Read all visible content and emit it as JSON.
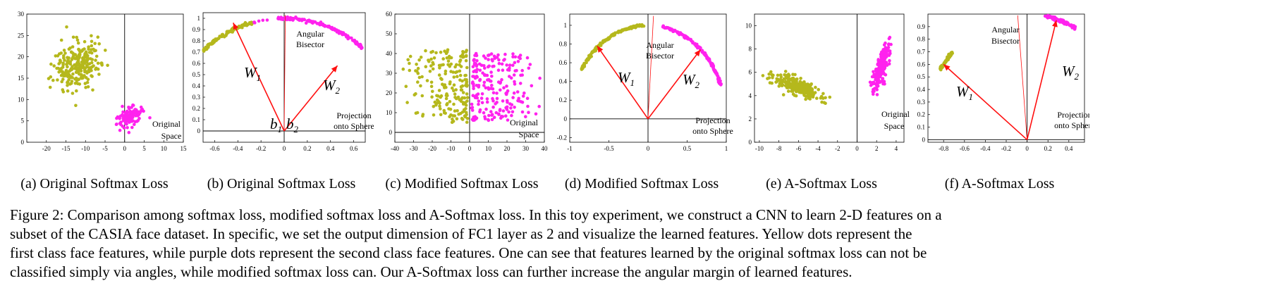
{
  "colors": {
    "class1": "#b5b81c",
    "class2": "#ff22ee",
    "vector": "#ff1010",
    "axis": "#000000"
  },
  "figure_caption": [
    "Figure 2: Comparison among softmax loss, modified softmax loss and A-Softmax loss. In this toy experiment, we construct a CNN to learn 2-D features on a",
    "subset of the CASIA face dataset. In specific, we set the output dimension of FC1 layer as 2 and visualize the learned features. Yellow dots represent the",
    "first class face features, while purple dots represent the second class face features. One can see that features learned by the original softmax loss can not be",
    "classified simply via angles, while modified softmax loss can. Our A-Softmax loss can further increase the angular margin of learned features."
  ],
  "chart_data": [
    {
      "type": "scatter",
      "caption": "(a) Original Softmax Loss",
      "xlim": [
        -25,
        15
      ],
      "ylim": [
        0,
        30
      ],
      "xticks": [
        "-20",
        "-15",
        "-10",
        "-5",
        "0",
        "5",
        "10",
        "15"
      ],
      "yticks": [
        "0",
        "5",
        "10",
        "15",
        "20",
        "25",
        "30"
      ],
      "annotations": [
        "Original",
        "Space"
      ],
      "clusters": [
        {
          "series": 0,
          "type": "blob",
          "cx": -12,
          "cy": 18,
          "sx": 4.5,
          "sy": 6,
          "rot": -0.85,
          "n": 260
        },
        {
          "series": 1,
          "type": "blob",
          "cx": 1.5,
          "cy": 6,
          "sx": 3.5,
          "sy": 1.7,
          "rot": 0.45,
          "n": 110
        }
      ]
    },
    {
      "type": "scatter",
      "caption": "(b) Original Softmax Loss",
      "xlim": [
        -0.7,
        0.7
      ],
      "ylim": [
        -0.1,
        1.05
      ],
      "xticks": [
        "-0.6",
        "-0.4",
        "-0.2",
        "0",
        "0.2",
        "0.4",
        "0.6"
      ],
      "yticks": [
        "0",
        "0.1",
        "0.2",
        "0.3",
        "0.4",
        "0.5",
        "0.6",
        "0.7",
        "0.8",
        "0.9",
        "1"
      ],
      "annotations": [
        "Projection",
        "onto Sphere",
        "Angular",
        "Bisector",
        "W1",
        "W2",
        "b1",
        "b2"
      ],
      "bisector": [
        0.01,
        1.03
      ],
      "vectors": [
        {
          "label": "W1",
          "to": [
            -0.44,
            0.96
          ]
        },
        {
          "label": "W2",
          "to": [
            0.46,
            0.58
          ]
        }
      ],
      "clusters": [
        {
          "series": 0,
          "type": "arc",
          "a0": 1.85,
          "a1": 2.37,
          "n": 120
        },
        {
          "series": 1,
          "type": "arc",
          "a0": 0.83,
          "a1": 1.63,
          "n": 150
        },
        {
          "series": 1,
          "type": "arc",
          "a0": 1.7,
          "a1": 1.85,
          "n": 6
        }
      ]
    },
    {
      "type": "scatter",
      "caption": "(c) Modified Softmax Loss",
      "xlim": [
        -40,
        40
      ],
      "ylim": [
        -5,
        60
      ],
      "xticks": [
        "-40",
        "-30",
        "-20",
        "-10",
        "0",
        "10",
        "20",
        "30",
        "40"
      ],
      "yticks": [
        "0",
        "10",
        "20",
        "30",
        "40",
        "50",
        "60"
      ],
      "annotations": [
        "Original",
        "Space"
      ],
      "clusters": [
        {
          "series": 0,
          "type": "rect",
          "x0": -39,
          "x1": -1,
          "y0": 5,
          "y1": 42,
          "n": 190,
          "bias": "right"
        },
        {
          "series": 1,
          "type": "rect",
          "x0": 1,
          "x1": 40,
          "y0": 6,
          "y1": 40,
          "n": 210,
          "bias": "left"
        }
      ]
    },
    {
      "type": "scatter",
      "caption": "(d) Modified Softmax Loss",
      "xlim": [
        -1,
        1
      ],
      "ylim": [
        -0.25,
        1.12
      ],
      "xticks": [
        "-1",
        "-0.5",
        "0",
        "0.5",
        "1"
      ],
      "yticks": [
        "-0.2",
        "0",
        "0.2",
        "0.4",
        "0.6",
        "0.8",
        "1"
      ],
      "annotations": [
        "Projection",
        "onto Sphere",
        "Angular",
        "Bisector",
        "W1",
        "W2"
      ],
      "bisector": [
        0.07,
        1.1
      ],
      "vectors": [
        {
          "label": "W1",
          "to": [
            -0.65,
            0.78
          ]
        },
        {
          "label": "W2",
          "to": [
            0.67,
            0.74
          ]
        }
      ],
      "clusters": [
        {
          "series": 0,
          "type": "arc",
          "a0": 1.6,
          "a1": 2.59,
          "n": 160
        },
        {
          "series": 1,
          "type": "arc",
          "a0": 0.37,
          "a1": 1.38,
          "n": 160
        }
      ]
    },
    {
      "type": "scatter",
      "caption": "(e) A-Softmax Loss",
      "xlim": [
        -10.5,
        4.8
      ],
      "ylim": [
        0,
        11
      ],
      "xticks": [
        "-10",
        "-8",
        "-6",
        "-4",
        "-2",
        "0",
        "2",
        "4"
      ],
      "yticks": [
        "0",
        "2",
        "4",
        "6",
        "8",
        "10"
      ],
      "annotations": [
        "Original",
        "Space"
      ],
      "clusters": [
        {
          "series": 0,
          "type": "blob",
          "cx": -6.2,
          "cy": 4.8,
          "sx": 2.2,
          "sy": 0.55,
          "rot": -0.35,
          "n": 300
        },
        {
          "series": 1,
          "type": "blob",
          "cx": 2.5,
          "cy": 6.4,
          "sx": 1.9,
          "sy": 0.45,
          "rot": 1.25,
          "n": 200
        }
      ]
    },
    {
      "type": "scatter",
      "caption": "(f) A-Softmax Loss",
      "xlim": [
        -0.95,
        0.55
      ],
      "ylim": [
        -0.02,
        1
      ],
      "xticks": [
        "-0.8",
        "-0.6",
        "-0.4",
        "-0.2",
        "0",
        "0.2",
        "0.4"
      ],
      "yticks": [
        "0",
        "0.1",
        "0.2",
        "0.3",
        "0.4",
        "0.5",
        "0.6",
        "0.7",
        "0.8",
        "0.9"
      ],
      "annotations": [
        "Projection",
        "onto Sphere",
        "Angular",
        "Bisector",
        "W1",
        "W2"
      ],
      "bisector": [
        -0.09,
        0.99
      ],
      "vectors": [
        {
          "label": "W1",
          "to": [
            -0.8,
            0.6
          ]
        },
        {
          "label": "W2",
          "to": [
            0.28,
            0.95
          ]
        }
      ],
      "clusters": [
        {
          "series": 0,
          "type": "arc",
          "a0": 2.37,
          "a1": 2.55,
          "n": 70
        },
        {
          "series": 1,
          "type": "arc",
          "a0": 1.09,
          "a1": 1.4,
          "n": 90
        }
      ]
    }
  ]
}
